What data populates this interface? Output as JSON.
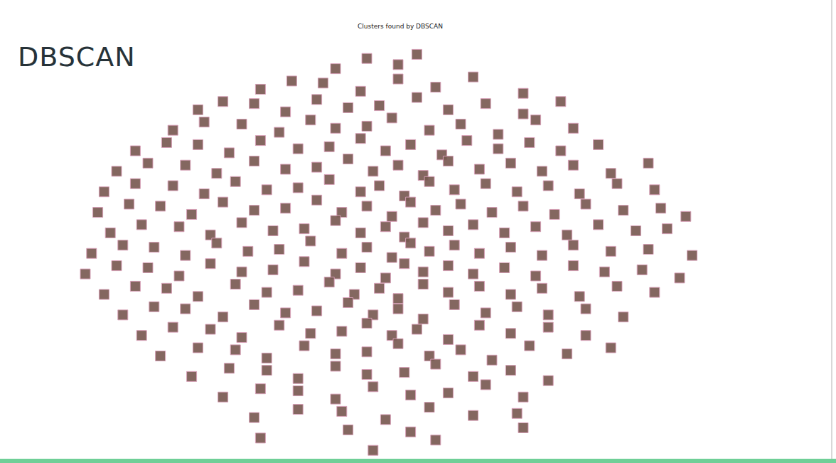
{
  "page": {
    "heading": "DBSCAN"
  },
  "chart_data": {
    "type": "scatter",
    "title": "Clusters found by DBSCAN",
    "xlim": [
      0,
      100
    ],
    "ylim": [
      0,
      100
    ],
    "tick_labels": false,
    "grid": false,
    "marker": "square",
    "color": "#7a5a52",
    "x": [
      40,
      45,
      50,
      53,
      28,
      33,
      38,
      44,
      50,
      56,
      62,
      70,
      18,
      22,
      27,
      32,
      37,
      42,
      47,
      53,
      58,
      64,
      70,
      76,
      14,
      19,
      25,
      31,
      36,
      40,
      45,
      49,
      55,
      60,
      66,
      72,
      78,
      8,
      13,
      18,
      23,
      28,
      34,
      39,
      44,
      48,
      52,
      57,
      61,
      66,
      71,
      76,
      82,
      5,
      10,
      16,
      21,
      27,
      32,
      37,
      42,
      46,
      50,
      54,
      58,
      63,
      68,
      73,
      78,
      84,
      90,
      3,
      8,
      14,
      19,
      24,
      29,
      34,
      39,
      44,
      47,
      51,
      55,
      59,
      64,
      69,
      74,
      79,
      85,
      91,
      2,
      7,
      12,
      17,
      22,
      27,
      32,
      37,
      41,
      45,
      49,
      52,
      56,
      60,
      65,
      70,
      75,
      80,
      86,
      92,
      96,
      4,
      9,
      15,
      20,
      25,
      30,
      35,
      40,
      44,
      48,
      51,
      54,
      58,
      62,
      67,
      72,
      77,
      82,
      88,
      93,
      1,
      6,
      11,
      16,
      21,
      26,
      31,
      36,
      41,
      45,
      49,
      52,
      55,
      59,
      63,
      68,
      73,
      78,
      84,
      90,
      97,
      0,
      5,
      10,
      15,
      20,
      25,
      30,
      35,
      40,
      44,
      48,
      51,
      54,
      58,
      62,
      67,
      72,
      78,
      83,
      89,
      95,
      3,
      8,
      13,
      18,
      24,
      29,
      34,
      39,
      43,
      47,
      50,
      54,
      58,
      63,
      68,
      73,
      79,
      85,
      91,
      6,
      11,
      16,
      22,
      27,
      32,
      37,
      42,
      46,
      50,
      54,
      59,
      64,
      69,
      74,
      80,
      86,
      9,
      14,
      20,
      25,
      31,
      36,
      41,
      45,
      49,
      53,
      58,
      63,
      68,
      74,
      80,
      12,
      18,
      24,
      29,
      35,
      40,
      45,
      50,
      55,
      60,
      65,
      71,
      77,
      84,
      17,
      23,
      29,
      34,
      40,
      45,
      51,
      56,
      62,
      68,
      74,
      22,
      28,
      34,
      40,
      46,
      52,
      58,
      64,
      70,
      27,
      34,
      41,
      48,
      55,
      62,
      69,
      28,
      42,
      52,
      56,
      70,
      46
    ],
    "values": [
      94,
      96.5,
      95,
      97.5,
      89,
      91,
      90.5,
      88.5,
      91.5,
      89.5,
      92,
      88,
      84,
      86,
      85.5,
      83.5,
      86.5,
      84.5,
      85,
      87,
      84,
      85.5,
      83,
      86,
      79,
      81,
      80.5,
      78.5,
      81.5,
      79.5,
      80,
      82,
      79,
      80.5,
      78,
      81.5,
      79.5,
      74,
      76,
      75.5,
      73.5,
      76.5,
      74.5,
      75,
      77,
      74,
      75.5,
      73,
      76.5,
      74.5,
      76,
      74,
      75.5,
      69,
      71,
      70.5,
      68.5,
      71.5,
      69.5,
      70,
      72,
      69,
      70.5,
      68,
      71.5,
      69.5,
      71,
      69,
      70.5,
      68.5,
      71,
      64,
      66,
      65.5,
      63.5,
      66.5,
      64.5,
      65,
      67,
      64,
      65.5,
      63,
      66.5,
      64.5,
      66,
      64,
      65.5,
      63.5,
      66,
      64.5,
      59,
      61,
      60.5,
      58.5,
      61.5,
      59.5,
      60,
      62,
      59,
      60.5,
      58,
      61.5,
      59.5,
      61,
      59,
      60.5,
      58.5,
      61,
      59.5,
      60,
      58,
      54,
      56,
      55.5,
      53.5,
      56.5,
      54.5,
      55,
      57,
      54,
      55.5,
      53,
      56.5,
      54.5,
      56,
      54,
      55.5,
      53.5,
      56,
      54.5,
      55,
      49,
      51,
      50.5,
      48.5,
      51.5,
      49.5,
      50,
      52,
      49,
      50.5,
      48,
      51.5,
      49.5,
      51,
      49,
      50.5,
      48.5,
      51,
      49.5,
      50,
      48.5,
      44,
      46,
      45.5,
      43.5,
      46.5,
      44.5,
      45,
      47,
      44,
      45.5,
      43,
      46.5,
      44.5,
      46,
      44,
      45.5,
      43.5,
      46,
      44.5,
      45,
      43,
      39,
      41,
      40.5,
      38.5,
      41.5,
      39.5,
      40,
      42,
      39,
      40.5,
      38,
      41.5,
      39.5,
      41,
      39,
      40.5,
      38.5,
      41,
      39.5,
      34,
      36,
      35.5,
      33.5,
      36.5,
      34.5,
      35,
      37,
      34,
      35.5,
      33,
      36.5,
      34.5,
      36,
      34,
      35.5,
      33.5,
      29,
      31,
      30.5,
      28.5,
      31.5,
      29.5,
      30,
      32,
      29,
      30.5,
      28,
      31.5,
      29.5,
      31,
      29,
      24,
      26,
      25.5,
      23.5,
      26.5,
      24.5,
      25,
      27,
      24,
      25.5,
      23,
      26.5,
      24.5,
      26,
      19,
      21,
      20.5,
      18.5,
      21.5,
      19.5,
      20,
      22,
      19,
      20.5,
      18,
      14,
      16,
      15.5,
      13.5,
      16.5,
      14.5,
      15,
      17,
      14,
      9,
      11,
      10.5,
      8.5,
      11.5,
      9.5,
      10,
      4,
      6,
      5.5,
      3.5,
      6.5,
      1
    ]
  }
}
